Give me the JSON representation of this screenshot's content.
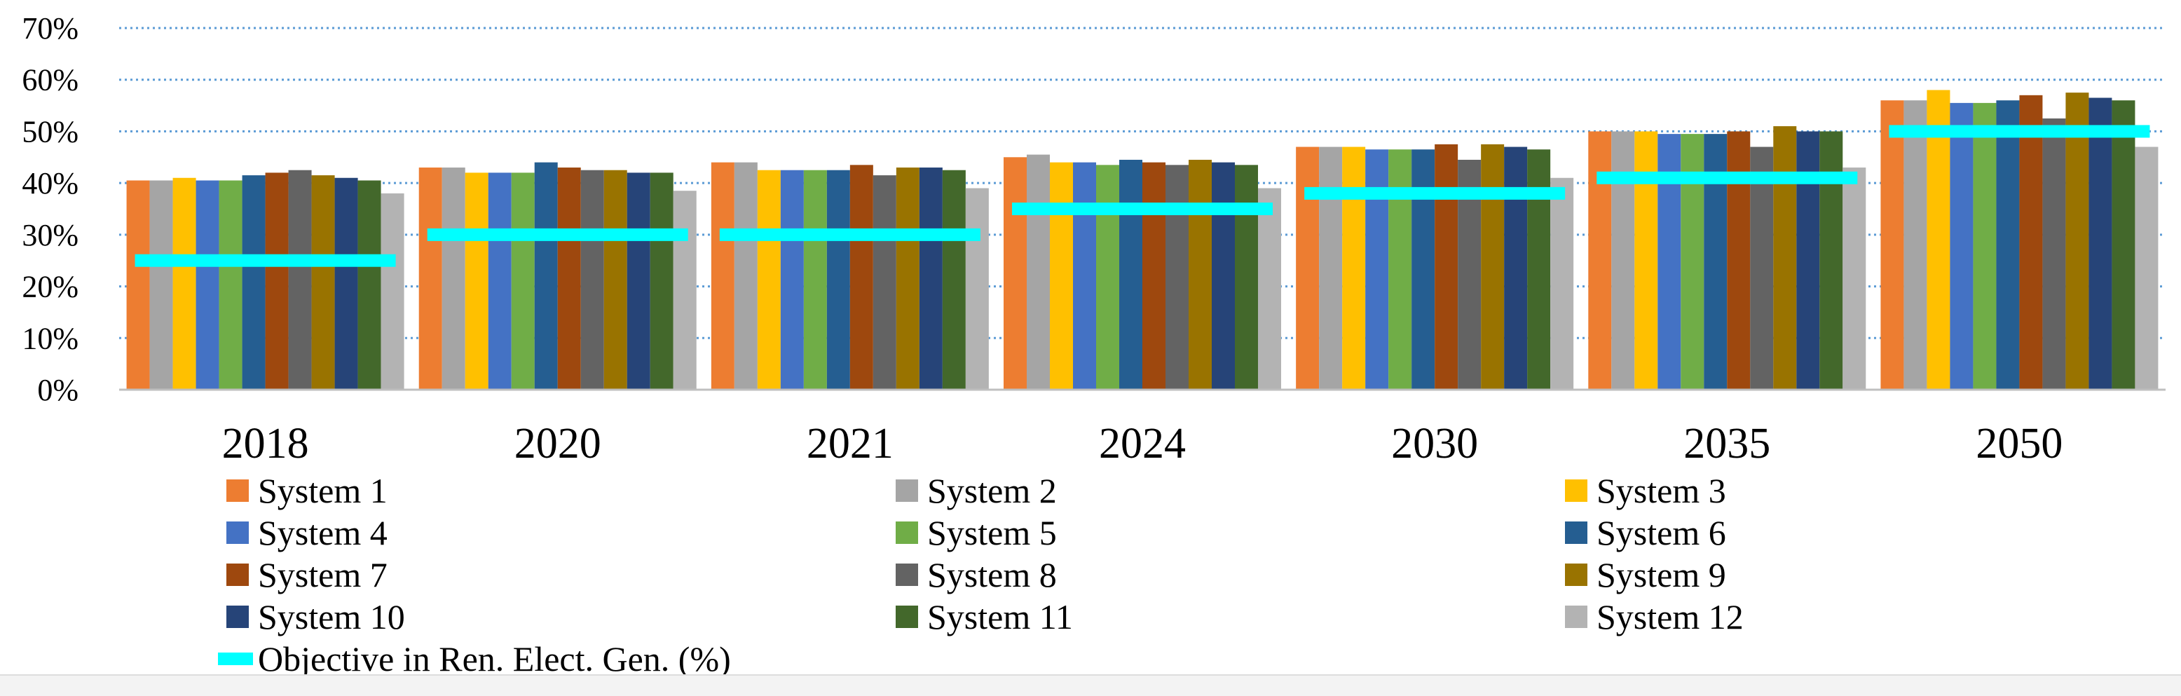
{
  "chart_data": {
    "type": "bar",
    "title": "",
    "xlabel": "",
    "ylabel": "",
    "ylim": [
      0,
      70
    ],
    "yticks": [
      0,
      10,
      20,
      30,
      40,
      50,
      60,
      70
    ],
    "ytick_labels": [
      "0%",
      "10%",
      "20%",
      "30%",
      "40%",
      "50%",
      "60%",
      "70%"
    ],
    "grid": "horizontal dotted",
    "legend_position": "bottom",
    "categories": [
      "2018",
      "2020",
      "2021",
      "2024",
      "2030",
      "2035",
      "2050"
    ],
    "series": [
      {
        "name": "System 1",
        "color": "#ED7D31",
        "values": [
          40.5,
          43.0,
          44.0,
          45.0,
          47.0,
          50.0,
          56.0
        ]
      },
      {
        "name": "System 2",
        "color": "#A5A5A5",
        "values": [
          40.5,
          43.0,
          44.0,
          45.5,
          47.0,
          50.0,
          56.0
        ]
      },
      {
        "name": "System 3",
        "color": "#FFC000",
        "values": [
          41.0,
          42.0,
          42.5,
          44.0,
          47.0,
          50.0,
          58.0
        ]
      },
      {
        "name": "System 4",
        "color": "#4472C4",
        "values": [
          40.5,
          42.0,
          42.5,
          44.0,
          46.5,
          49.5,
          55.5
        ]
      },
      {
        "name": "System 5",
        "color": "#70AD47",
        "values": [
          40.5,
          42.0,
          42.5,
          43.5,
          46.5,
          49.5,
          55.5
        ]
      },
      {
        "name": "System 6",
        "color": "#255E91",
        "values": [
          41.5,
          44.0,
          42.5,
          44.5,
          46.5,
          49.5,
          56.0
        ]
      },
      {
        "name": "System 7",
        "color": "#9E480E",
        "values": [
          42.0,
          43.0,
          43.5,
          44.0,
          47.5,
          50.0,
          57.0
        ]
      },
      {
        "name": "System 8",
        "color": "#636363",
        "values": [
          42.5,
          42.5,
          41.5,
          43.5,
          44.5,
          47.0,
          52.5
        ]
      },
      {
        "name": "System 9",
        "color": "#997300",
        "values": [
          41.5,
          42.5,
          43.0,
          44.5,
          47.5,
          51.0,
          57.5
        ]
      },
      {
        "name": "System 10",
        "color": "#264478",
        "values": [
          41.0,
          42.0,
          43.0,
          44.0,
          47.0,
          50.0,
          56.5
        ]
      },
      {
        "name": "System 11",
        "color": "#43682B",
        "values": [
          40.5,
          42.0,
          42.5,
          43.5,
          46.5,
          50.0,
          56.0
        ]
      },
      {
        "name": "System 12",
        "color": "#B3B3B3",
        "values": [
          38.0,
          38.5,
          39.0,
          39.0,
          41.0,
          43.0,
          47.0
        ]
      }
    ],
    "objective": {
      "name": "Objective in Ren. Elect. Gen. (%)",
      "color": "#00FFFF",
      "values": [
        25,
        30,
        30,
        35,
        38,
        41,
        50
      ]
    }
  }
}
